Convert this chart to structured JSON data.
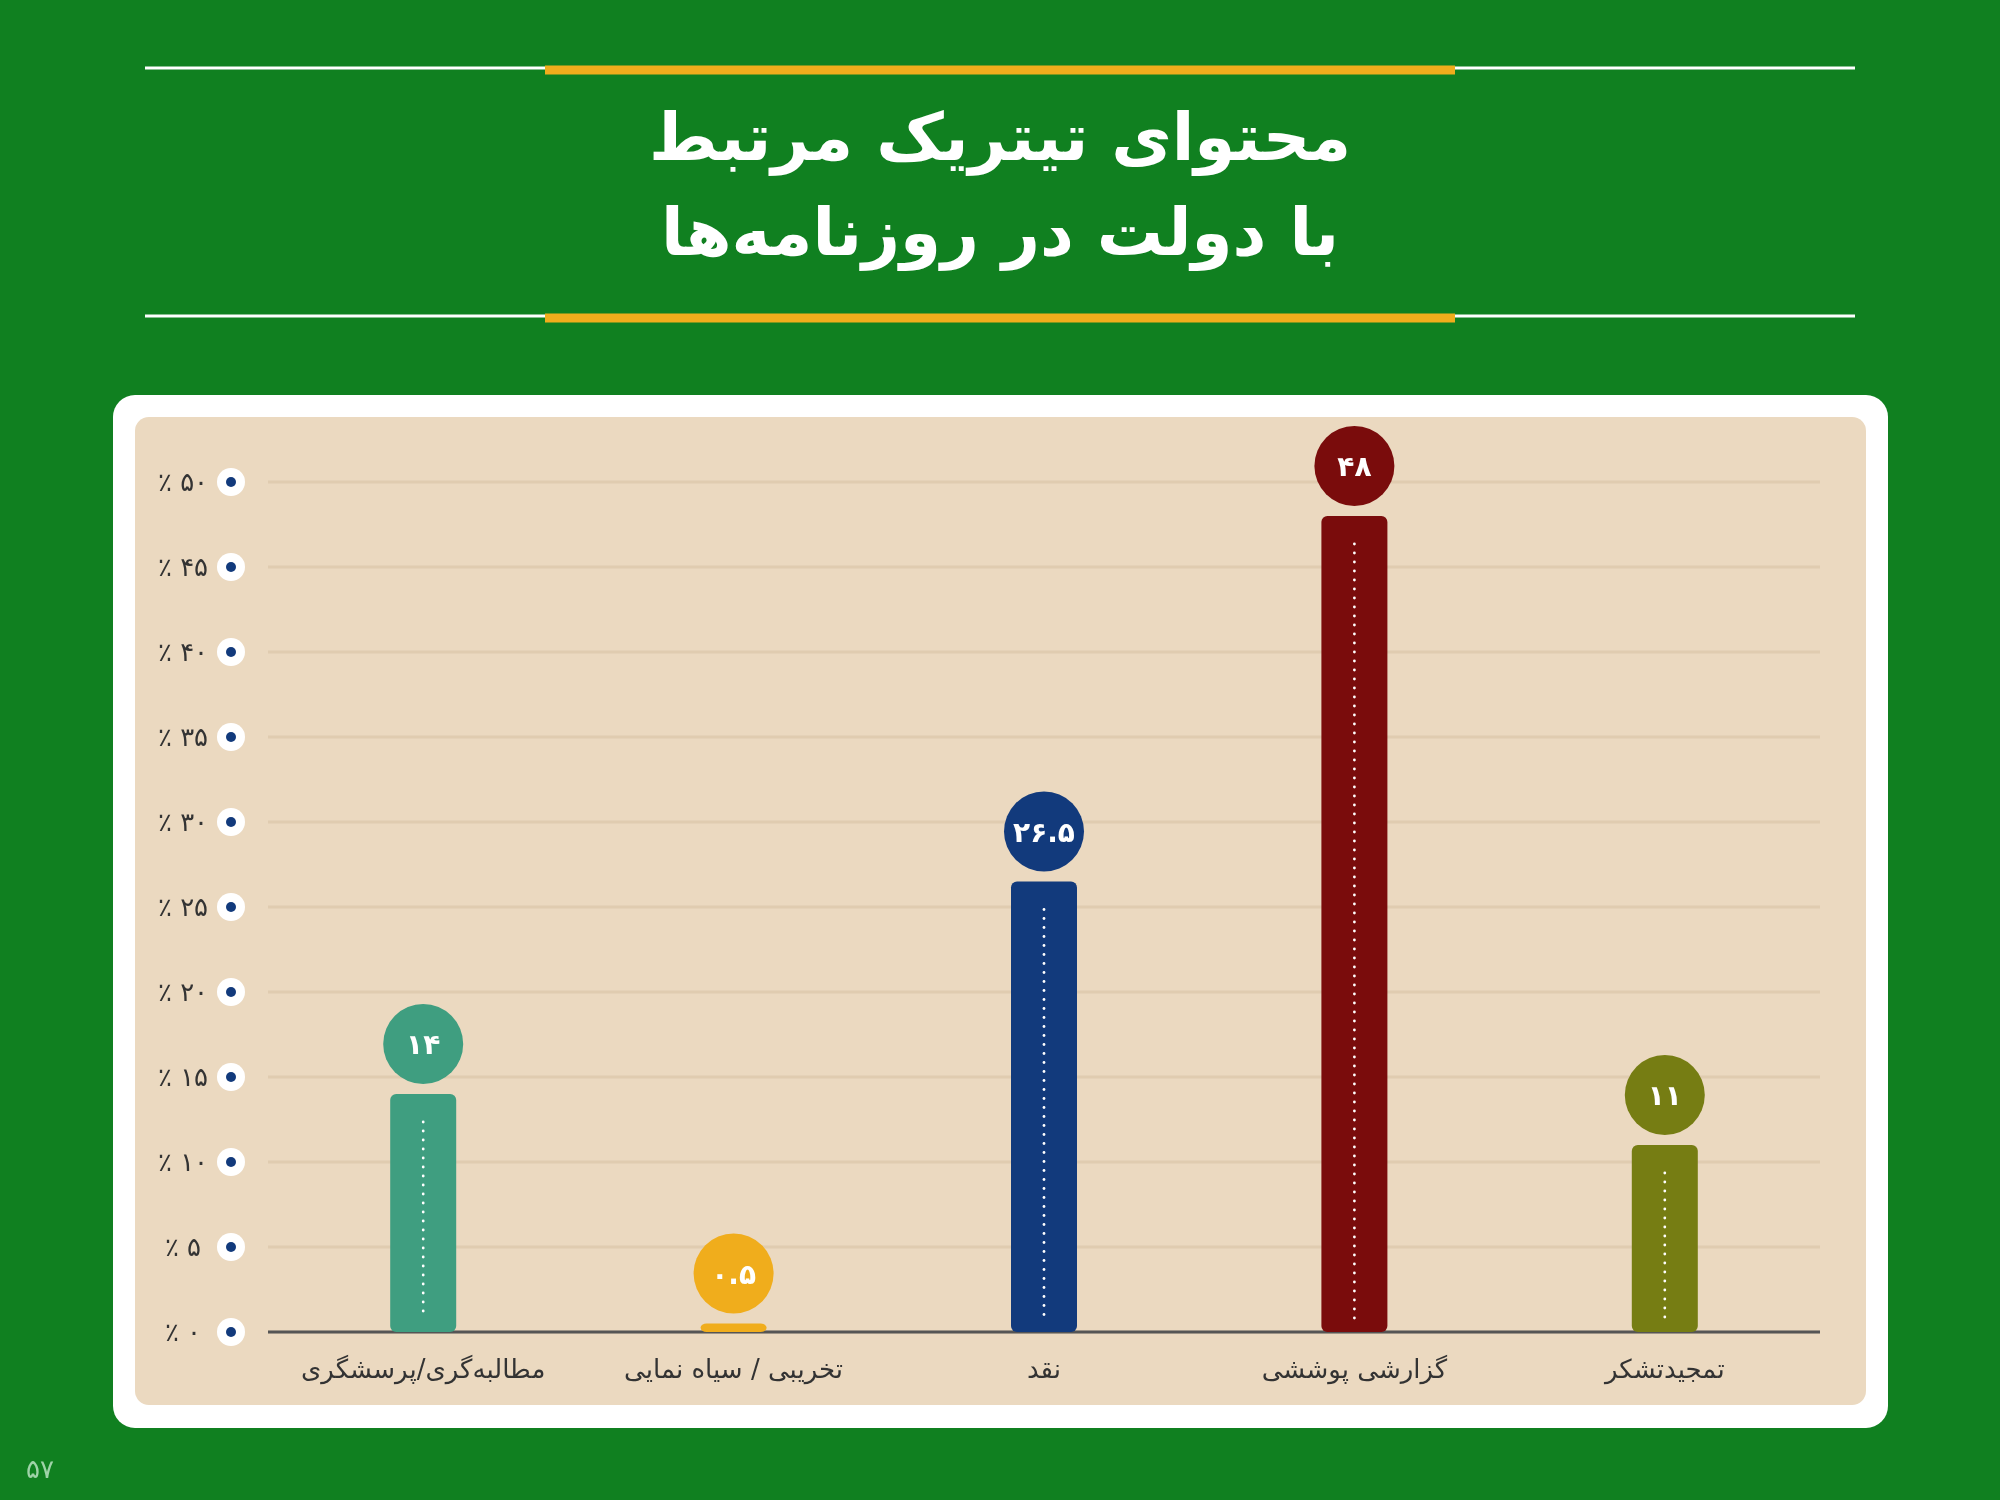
{
  "chart_data": {
    "type": "bar",
    "title": "محتوای تیتریک مرتبط\nبا دولت در روزنامه‌ها",
    "categories": [
      "مطالبه‌گری/پرسشگری",
      "تخریبی / سیاه نمایی",
      "نقد",
      "گزارشی پوششی",
      "تمجیدتشکر"
    ],
    "values": [
      14,
      0.5,
      26.5,
      48,
      11
    ],
    "value_labels": [
      "۱۴",
      "۰.۵",
      "۲۶.۵",
      "۴۸",
      "۱۱"
    ],
    "colors": [
      "#3f9e80",
      "#f0ad1c",
      "#123a7c",
      "#7a0c0c",
      "#767d13"
    ],
    "ylim": [
      0,
      50
    ],
    "yticks": [
      {
        "value": 0,
        "label": "٪ ۰"
      },
      {
        "value": 5,
        "label": "٪ ۵"
      },
      {
        "value": 10,
        "label": "٪ ۱۰"
      },
      {
        "value": 15,
        "label": "٪ ۱۵"
      },
      {
        "value": 20,
        "label": "٪ ۲۰"
      },
      {
        "value": 25,
        "label": "٪ ۲۵"
      },
      {
        "value": 30,
        "label": "٪ ۳۰"
      },
      {
        "value": 35,
        "label": "٪ ۳۵"
      },
      {
        "value": 40,
        "label": "٪ ۴۰"
      },
      {
        "value": 45,
        "label": "٪ ۴۵"
      },
      {
        "value": 50,
        "label": "٪ ۵۰"
      }
    ],
    "grid": "y",
    "annotations": [
      "۵۷"
    ]
  }
}
